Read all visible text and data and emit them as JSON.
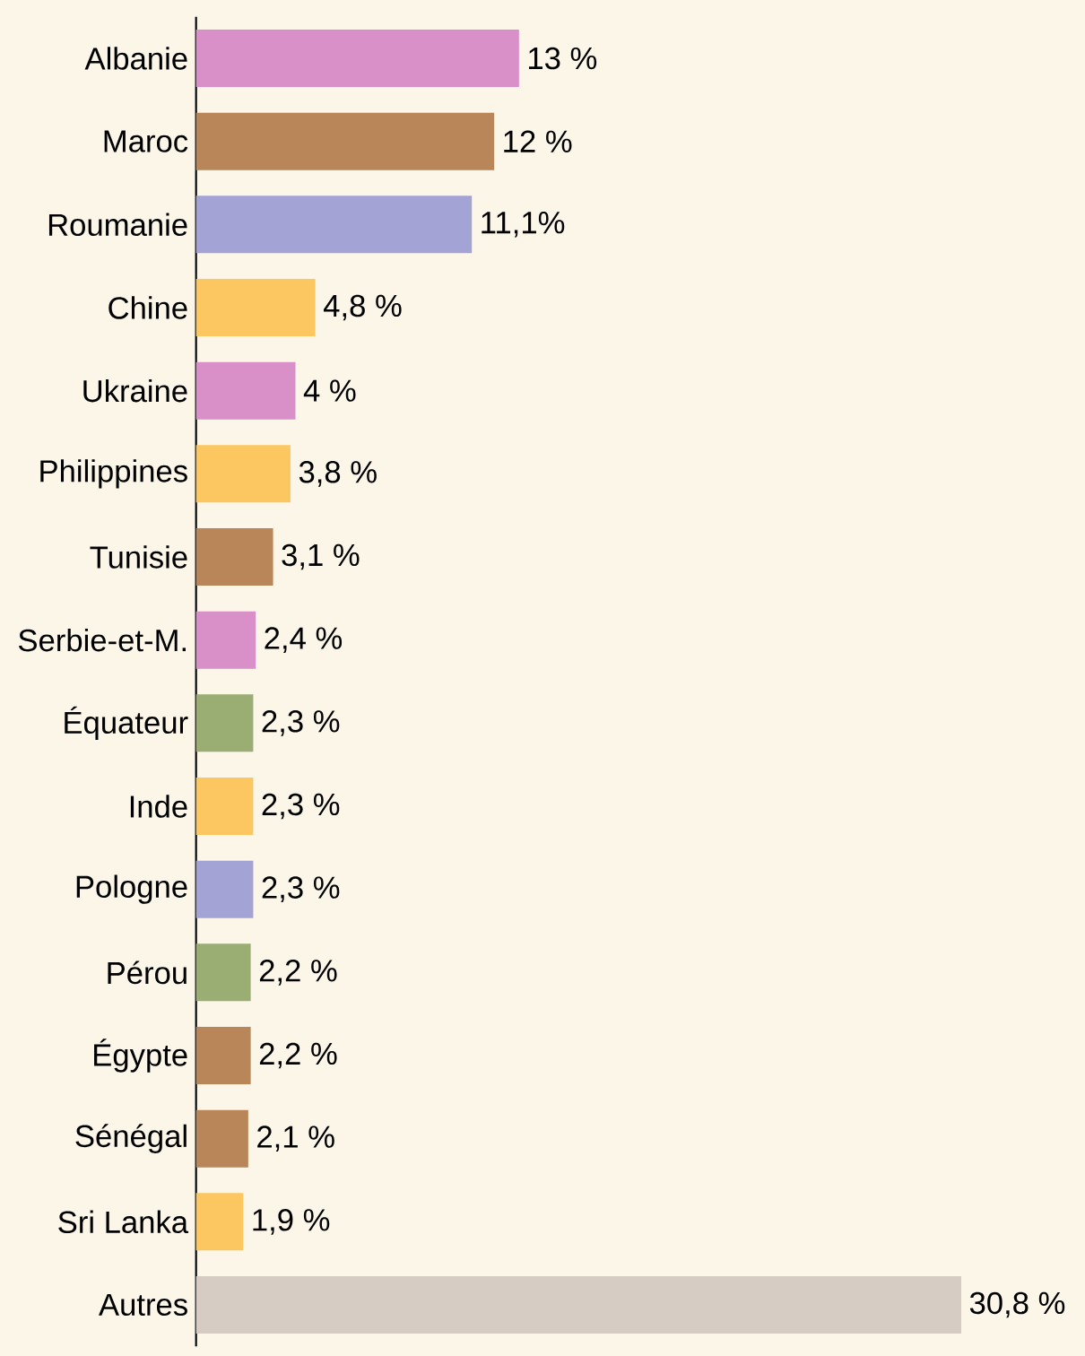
{
  "chart_data": {
    "type": "bar",
    "orientation": "horizontal",
    "tick_labels": "y",
    "data_labels": true,
    "categories": [
      "Albanie",
      "Maroc",
      "Roumanie",
      "Chine",
      "Ukraine",
      "Philippines",
      "Tunisie",
      "Serbie-et-M.",
      "Équateur",
      "Inde",
      "Pologne",
      "Pérou",
      "Égypte",
      "Sénégal",
      "Sri Lanka",
      "Autres"
    ],
    "values": [
      13,
      12,
      11.1,
      4.8,
      4,
      3.8,
      3.1,
      2.4,
      2.3,
      2.3,
      2.3,
      2.2,
      2.2,
      2.1,
      1.9,
      30.8
    ],
    "value_labels": [
      "13 %",
      "12 %",
      "11,1%",
      "4,8 %",
      "4 %",
      "3,8 %",
      "3,1 %",
      "2,4 %",
      "2,3 %",
      "2,3 %",
      "2,3 %",
      "2,2 %",
      "2,2 %",
      "2,1 %",
      "1,9 %",
      "30,8 %"
    ],
    "colors": [
      "#d98fc8",
      "#b98659",
      "#a3a3d6",
      "#fcc760",
      "#d98fc8",
      "#fcc760",
      "#b98659",
      "#d98fc8",
      "#9aad73",
      "#fcc760",
      "#a3a3d6",
      "#9aad73",
      "#b98659",
      "#b98659",
      "#fcc760",
      "#d6ccc4"
    ],
    "xlim": [
      0,
      30.8
    ]
  }
}
